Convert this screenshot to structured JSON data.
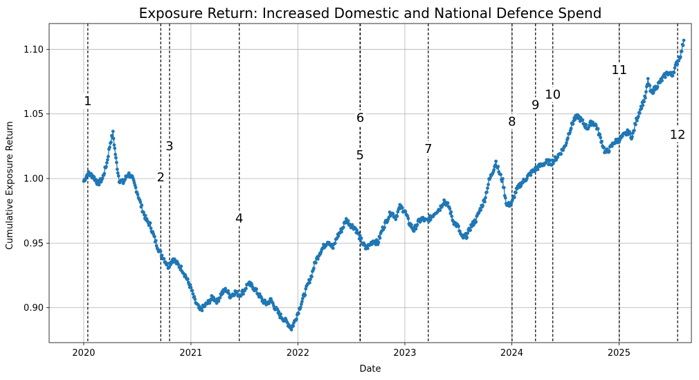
{
  "chart_data": {
    "type": "line",
    "title": "Exposure Return: Increased Domestic and National Defence Spend",
    "xlabel": "Date",
    "ylabel": "Cumulative Exposure Return",
    "xlim": [
      "2019-09-05",
      "2025-09-05"
    ],
    "ylim": [
      0.873,
      1.12
    ],
    "grid": true,
    "x_ticks": [
      "2020",
      "2021",
      "2022",
      "2023",
      "2024",
      "2025"
    ],
    "x_tick_dates": [
      "2020-01-01",
      "2021-01-01",
      "2022-01-01",
      "2023-01-01",
      "2024-01-01",
      "2025-01-01"
    ],
    "y_ticks": [
      "0.90",
      "0.95",
      "1.00",
      "1.05",
      "1.10"
    ],
    "y_tick_values": [
      0.9,
      0.95,
      1.0,
      1.05,
      1.1
    ],
    "series_color": "#1f77b4",
    "series": [
      {
        "marker": "circle",
        "points": [
          [
            "2020-01-01",
            0.998
          ],
          [
            "2020-01-15",
            1.004
          ],
          [
            "2020-02-01",
            1.002
          ],
          [
            "2020-02-20",
            0.996
          ],
          [
            "2020-03-05",
            1.0
          ],
          [
            "2020-03-20",
            1.012
          ],
          [
            "2020-04-01",
            1.028
          ],
          [
            "2020-04-10",
            1.035
          ],
          [
            "2020-04-20",
            1.015
          ],
          [
            "2020-05-01",
            0.999
          ],
          [
            "2020-05-15",
            0.997
          ],
          [
            "2020-06-01",
            1.004
          ],
          [
            "2020-06-15",
            1.0
          ],
          [
            "2020-07-01",
            0.99
          ],
          [
            "2020-07-15",
            0.979
          ],
          [
            "2020-08-01",
            0.968
          ],
          [
            "2020-08-15",
            0.964
          ],
          [
            "2020-09-01",
            0.952
          ],
          [
            "2020-09-15",
            0.944
          ],
          [
            "2020-10-01",
            0.938
          ],
          [
            "2020-10-15",
            0.932
          ],
          [
            "2020-11-01",
            0.938
          ],
          [
            "2020-11-15",
            0.934
          ],
          [
            "2020-12-01",
            0.93
          ],
          [
            "2020-12-15",
            0.924
          ],
          [
            "2021-01-01",
            0.915
          ],
          [
            "2021-01-15",
            0.905
          ],
          [
            "2021-02-01",
            0.898
          ],
          [
            "2021-02-15",
            0.901
          ],
          [
            "2021-03-01",
            0.904
          ],
          [
            "2021-03-15",
            0.908
          ],
          [
            "2021-04-01",
            0.905
          ],
          [
            "2021-04-15",
            0.911
          ],
          [
            "2021-05-01",
            0.914
          ],
          [
            "2021-05-15",
            0.909
          ],
          [
            "2021-06-01",
            0.912
          ],
          [
            "2021-06-15",
            0.91
          ],
          [
            "2021-07-01",
            0.913
          ],
          [
            "2021-07-15",
            0.919
          ],
          [
            "2021-08-01",
            0.916
          ],
          [
            "2021-08-15",
            0.912
          ],
          [
            "2021-09-01",
            0.906
          ],
          [
            "2021-09-15",
            0.903
          ],
          [
            "2021-10-01",
            0.906
          ],
          [
            "2021-10-15",
            0.9
          ],
          [
            "2021-11-01",
            0.894
          ],
          [
            "2021-11-15",
            0.891
          ],
          [
            "2021-12-01",
            0.887
          ],
          [
            "2021-12-10",
            0.884
          ],
          [
            "2021-12-20",
            0.889
          ],
          [
            "2022-01-01",
            0.896
          ],
          [
            "2022-01-15",
            0.905
          ],
          [
            "2022-02-01",
            0.916
          ],
          [
            "2022-02-15",
            0.924
          ],
          [
            "2022-03-01",
            0.935
          ],
          [
            "2022-03-15",
            0.942
          ],
          [
            "2022-04-01",
            0.948
          ],
          [
            "2022-04-15",
            0.952
          ],
          [
            "2022-05-01",
            0.946
          ],
          [
            "2022-05-15",
            0.955
          ],
          [
            "2022-06-01",
            0.961
          ],
          [
            "2022-06-15",
            0.968
          ],
          [
            "2022-07-01",
            0.964
          ],
          [
            "2022-07-15",
            0.962
          ],
          [
            "2022-08-01",
            0.954
          ],
          [
            "2022-08-10",
            0.95
          ],
          [
            "2022-08-20",
            0.946
          ],
          [
            "2022-09-01",
            0.948
          ],
          [
            "2022-09-15",
            0.952
          ],
          [
            "2022-10-01",
            0.95
          ],
          [
            "2022-10-15",
            0.96
          ],
          [
            "2022-11-01",
            0.968
          ],
          [
            "2022-11-15",
            0.974
          ],
          [
            "2022-12-01",
            0.97
          ],
          [
            "2022-12-15",
            0.978
          ],
          [
            "2023-01-01",
            0.975
          ],
          [
            "2023-01-15",
            0.966
          ],
          [
            "2023-02-01",
            0.96
          ],
          [
            "2023-02-15",
            0.966
          ],
          [
            "2023-03-01",
            0.969
          ],
          [
            "2023-03-15",
            0.967
          ],
          [
            "2023-04-01",
            0.97
          ],
          [
            "2023-04-15",
            0.974
          ],
          [
            "2023-05-01",
            0.977
          ],
          [
            "2023-05-15",
            0.983
          ],
          [
            "2023-06-01",
            0.978
          ],
          [
            "2023-06-15",
            0.967
          ],
          [
            "2023-07-01",
            0.963
          ],
          [
            "2023-07-15",
            0.954
          ],
          [
            "2023-08-01",
            0.956
          ],
          [
            "2023-08-15",
            0.963
          ],
          [
            "2023-09-01",
            0.968
          ],
          [
            "2023-09-15",
            0.976
          ],
          [
            "2023-10-01",
            0.984
          ],
          [
            "2023-10-15",
            0.998
          ],
          [
            "2023-11-01",
            1.008
          ],
          [
            "2023-11-08",
            1.013
          ],
          [
            "2023-11-20",
            1.004
          ],
          [
            "2023-12-01",
            0.998
          ],
          [
            "2023-12-15",
            0.979
          ],
          [
            "2024-01-01",
            0.981
          ],
          [
            "2024-01-15",
            0.99
          ],
          [
            "2024-02-01",
            0.996
          ],
          [
            "2024-02-15",
            0.999
          ],
          [
            "2024-03-01",
            1.003
          ],
          [
            "2024-03-15",
            1.006
          ],
          [
            "2024-04-01",
            1.009
          ],
          [
            "2024-04-15",
            1.011
          ],
          [
            "2024-05-01",
            1.013
          ],
          [
            "2024-05-15",
            1.012
          ],
          [
            "2024-06-01",
            1.016
          ],
          [
            "2024-06-15",
            1.02
          ],
          [
            "2024-07-01",
            1.025
          ],
          [
            "2024-07-15",
            1.036
          ],
          [
            "2024-08-01",
            1.046
          ],
          [
            "2024-08-15",
            1.048
          ],
          [
            "2024-09-01",
            1.043
          ],
          [
            "2024-09-15",
            1.039
          ],
          [
            "2024-10-01",
            1.044
          ],
          [
            "2024-10-15",
            1.041
          ],
          [
            "2024-11-01",
            1.03
          ],
          [
            "2024-11-15",
            1.02
          ],
          [
            "2024-12-01",
            1.023
          ],
          [
            "2024-12-15",
            1.028
          ],
          [
            "2025-01-01",
            1.03
          ],
          [
            "2025-01-15",
            1.033
          ],
          [
            "2025-02-01",
            1.036
          ],
          [
            "2025-02-15",
            1.032
          ],
          [
            "2025-03-01",
            1.045
          ],
          [
            "2025-03-15",
            1.054
          ],
          [
            "2025-04-01",
            1.063
          ],
          [
            "2025-04-10",
            1.076
          ],
          [
            "2025-04-20",
            1.066
          ],
          [
            "2025-05-01",
            1.069
          ],
          [
            "2025-05-15",
            1.073
          ],
          [
            "2025-06-01",
            1.078
          ],
          [
            "2025-06-15",
            1.082
          ],
          [
            "2025-07-01",
            1.08
          ],
          [
            "2025-07-15",
            1.088
          ],
          [
            "2025-08-01",
            1.097
          ],
          [
            "2025-08-10",
            1.107
          ]
        ]
      }
    ],
    "events": [
      {
        "label": "1",
        "date": "2020-01-15",
        "label_y": 1.059
      },
      {
        "label": "2",
        "date": "2020-09-20",
        "label_y": 1.0
      },
      {
        "label": "3",
        "date": "2020-10-20",
        "label_y": 1.024
      },
      {
        "label": "4",
        "date": "2021-06-15",
        "label_y": 0.968
      },
      {
        "label": "5",
        "date": "2022-08-01",
        "label_y": 1.017
      },
      {
        "label": "6",
        "date": "2022-08-02",
        "label_y": 1.046
      },
      {
        "label": "7",
        "date": "2023-03-22",
        "label_y": 1.022
      },
      {
        "label": "8",
        "date": "2024-01-02",
        "label_y": 1.043
      },
      {
        "label": "9",
        "date": "2024-03-22",
        "label_y": 1.056
      },
      {
        "label": "10",
        "date": "2024-05-20",
        "label_y": 1.064
      },
      {
        "label": "11",
        "date": "2025-01-02",
        "label_y": 1.083
      },
      {
        "label": "12",
        "date": "2025-07-20",
        "label_y": 1.033
      }
    ]
  }
}
